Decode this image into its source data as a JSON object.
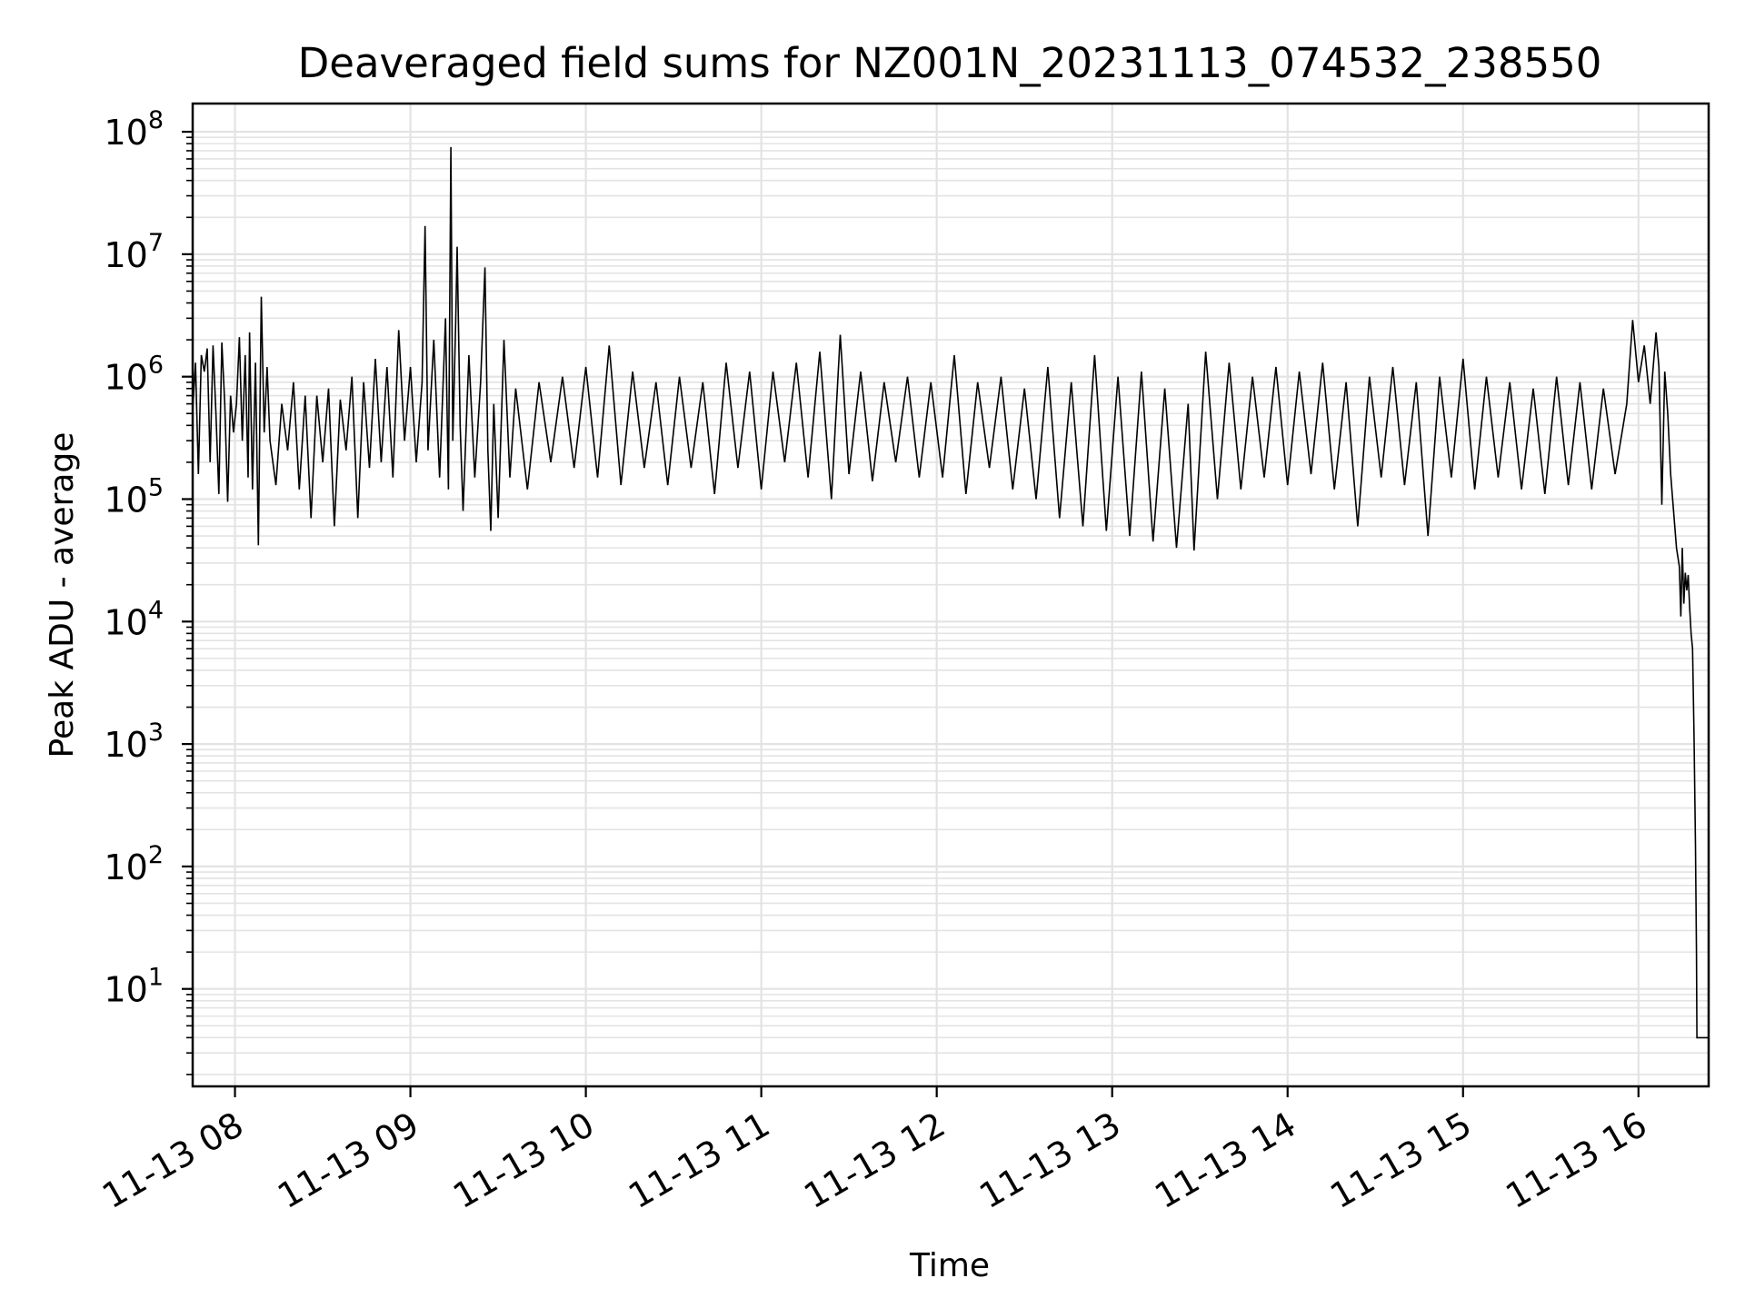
{
  "chart_data": {
    "type": "line",
    "title": "Deaveraged field sums for NZ001N_20231113_074532_238550",
    "xlabel": "Time",
    "ylabel": "Peak ADU - average",
    "yscale": "log",
    "ylim": [
      1.6,
      170000000
    ],
    "xlim": [
      "2023-11-13 07:45:32",
      "2023-11-13 16:24:00"
    ],
    "grid": true,
    "x_tick_labels": [
      "11-13 08",
      "11-13 09",
      "11-13 10",
      "11-13 11",
      "11-13 12",
      "11-13 13",
      "11-13 14",
      "11-13 15",
      "11-13 16"
    ],
    "x_ticks": [
      "2023-11-13 08:00",
      "2023-11-13 09:00",
      "2023-11-13 10:00",
      "2023-11-13 11:00",
      "2023-11-13 12:00",
      "2023-11-13 13:00",
      "2023-11-13 14:00",
      "2023-11-13 15:00",
      "2023-11-13 16:00"
    ],
    "y_ticks": [
      {
        "base": "10",
        "exp": "1",
        "value": 10
      },
      {
        "base": "10",
        "exp": "2",
        "value": 100
      },
      {
        "base": "10",
        "exp": "3",
        "value": 1000
      },
      {
        "base": "10",
        "exp": "4",
        "value": 10000
      },
      {
        "base": "10",
        "exp": "5",
        "value": 100000
      },
      {
        "base": "10",
        "exp": "6",
        "value": 1000000
      },
      {
        "base": "10",
        "exp": "7",
        "value": 10000000
      },
      {
        "base": "10",
        "exp": "8",
        "value": 100000000
      }
    ],
    "series": [
      {
        "color": "#000000",
        "points": [
          [
            "2023-11-13 07:45:40",
            600000
          ],
          [
            "2023-11-13 07:46:30",
            1300000
          ],
          [
            "2023-11-13 07:47:30",
            160000
          ],
          [
            "2023-11-13 07:48:30",
            1500000
          ],
          [
            "2023-11-13 07:49:30",
            1100000
          ],
          [
            "2023-11-13 07:50:30",
            1700000
          ],
          [
            "2023-11-13 07:51:30",
            200000
          ],
          [
            "2023-11-13 07:52:30",
            1800000
          ],
          [
            "2023-11-13 07:53:30",
            500000
          ],
          [
            "2023-11-13 07:54:30",
            110000
          ],
          [
            "2023-11-13 07:55:30",
            1900000
          ],
          [
            "2023-11-13 07:56:30",
            600000
          ],
          [
            "2023-11-13 07:57:30",
            95000
          ],
          [
            "2023-11-13 07:58:30",
            700000
          ],
          [
            "2023-11-13 07:59:30",
            350000
          ],
          [
            "2023-11-13 08:00:30",
            600000
          ],
          [
            "2023-11-13 08:01:30",
            2100000
          ],
          [
            "2023-11-13 08:02:30",
            300000
          ],
          [
            "2023-11-13 08:03:30",
            1500000
          ],
          [
            "2023-11-13 08:04:30",
            150000
          ],
          [
            "2023-11-13 08:05:00",
            2300000
          ],
          [
            "2023-11-13 08:06:00",
            120000
          ],
          [
            "2023-11-13 08:07:00",
            1300000
          ],
          [
            "2023-11-13 08:08:00",
            42000
          ],
          [
            "2023-11-13 08:09:00",
            4500000
          ],
          [
            "2023-11-13 08:10:00",
            350000
          ],
          [
            "2023-11-13 08:11:00",
            1200000
          ],
          [
            "2023-11-13 08:12:00",
            300000
          ],
          [
            "2023-11-13 08:14:00",
            130000
          ],
          [
            "2023-11-13 08:16:00",
            600000
          ],
          [
            "2023-11-13 08:18:00",
            250000
          ],
          [
            "2023-11-13 08:20:00",
            900000
          ],
          [
            "2023-11-13 08:22:00",
            120000
          ],
          [
            "2023-11-13 08:24:00",
            700000
          ],
          [
            "2023-11-13 08:26:00",
            70000
          ],
          [
            "2023-11-13 08:28:00",
            700000
          ],
          [
            "2023-11-13 08:30:00",
            200000
          ],
          [
            "2023-11-13 08:32:00",
            800000
          ],
          [
            "2023-11-13 08:34:00",
            60000
          ],
          [
            "2023-11-13 08:36:00",
            650000
          ],
          [
            "2023-11-13 08:38:00",
            250000
          ],
          [
            "2023-11-13 08:40:00",
            1000000
          ],
          [
            "2023-11-13 08:42:00",
            70000
          ],
          [
            "2023-11-13 08:44:00",
            900000
          ],
          [
            "2023-11-13 08:46:00",
            180000
          ],
          [
            "2023-11-13 08:48:00",
            1400000
          ],
          [
            "2023-11-13 08:50:00",
            200000
          ],
          [
            "2023-11-13 08:52:00",
            1200000
          ],
          [
            "2023-11-13 08:54:00",
            150000
          ],
          [
            "2023-11-13 08:56:00",
            2400000
          ],
          [
            "2023-11-13 08:58:00",
            300000
          ],
          [
            "2023-11-13 09:00:00",
            1200000
          ],
          [
            "2023-11-13 09:02:00",
            200000
          ],
          [
            "2023-11-13 09:04:00",
            900000
          ],
          [
            "2023-11-13 09:05:00",
            17000000
          ],
          [
            "2023-11-13 09:06:00",
            250000
          ],
          [
            "2023-11-13 09:08:00",
            2000000
          ],
          [
            "2023-11-13 09:10:00",
            150000
          ],
          [
            "2023-11-13 09:12:00",
            3000000
          ],
          [
            "2023-11-13 09:13:00",
            120000
          ],
          [
            "2023-11-13 09:13:50",
            75000000
          ],
          [
            "2023-11-13 09:14:30",
            300000
          ],
          [
            "2023-11-13 09:15:30",
            2800000
          ],
          [
            "2023-11-13 09:16:00",
            11500000
          ],
          [
            "2023-11-13 09:17:00",
            400000
          ],
          [
            "2023-11-13 09:18:00",
            80000
          ],
          [
            "2023-11-13 09:20:00",
            1500000
          ],
          [
            "2023-11-13 09:22:00",
            150000
          ],
          [
            "2023-11-13 09:24:00",
            900000
          ],
          [
            "2023-11-13 09:25:30",
            7800000
          ],
          [
            "2023-11-13 09:26:30",
            250000
          ],
          [
            "2023-11-13 09:27:30",
            55000
          ],
          [
            "2023-11-13 09:28:30",
            600000
          ],
          [
            "2023-11-13 09:30:00",
            70000
          ],
          [
            "2023-11-13 09:32:00",
            2000000
          ],
          [
            "2023-11-13 09:34:00",
            150000
          ],
          [
            "2023-11-13 09:36:00",
            800000
          ],
          [
            "2023-11-13 09:40:00",
            120000
          ],
          [
            "2023-11-13 09:44:00",
            900000
          ],
          [
            "2023-11-13 09:48:00",
            200000
          ],
          [
            "2023-11-13 09:52:00",
            1000000
          ],
          [
            "2023-11-13 09:56:00",
            180000
          ],
          [
            "2023-11-13 10:00:00",
            1200000
          ],
          [
            "2023-11-13 10:04:00",
            150000
          ],
          [
            "2023-11-13 10:08:00",
            1800000
          ],
          [
            "2023-11-13 10:12:00",
            130000
          ],
          [
            "2023-11-13 10:16:00",
            1100000
          ],
          [
            "2023-11-13 10:20:00",
            180000
          ],
          [
            "2023-11-13 10:24:00",
            900000
          ],
          [
            "2023-11-13 10:28:00",
            130000
          ],
          [
            "2023-11-13 10:32:00",
            1000000
          ],
          [
            "2023-11-13 10:36:00",
            180000
          ],
          [
            "2023-11-13 10:40:00",
            900000
          ],
          [
            "2023-11-13 10:44:00",
            110000
          ],
          [
            "2023-11-13 10:48:00",
            1300000
          ],
          [
            "2023-11-13 10:52:00",
            180000
          ],
          [
            "2023-11-13 10:56:00",
            1100000
          ],
          [
            "2023-11-13 11:00:00",
            120000
          ],
          [
            "2023-11-13 11:04:00",
            1100000
          ],
          [
            "2023-11-13 11:08:00",
            200000
          ],
          [
            "2023-11-13 11:12:00",
            1300000
          ],
          [
            "2023-11-13 11:16:00",
            150000
          ],
          [
            "2023-11-13 11:20:00",
            1600000
          ],
          [
            "2023-11-13 11:24:00",
            100000
          ],
          [
            "2023-11-13 11:27:00",
            2200000
          ],
          [
            "2023-11-13 11:30:00",
            160000
          ],
          [
            "2023-11-13 11:34:00",
            1100000
          ],
          [
            "2023-11-13 11:38:00",
            140000
          ],
          [
            "2023-11-13 11:42:00",
            900000
          ],
          [
            "2023-11-13 11:46:00",
            200000
          ],
          [
            "2023-11-13 11:50:00",
            1000000
          ],
          [
            "2023-11-13 11:54:00",
            150000
          ],
          [
            "2023-11-13 11:58:00",
            900000
          ],
          [
            "2023-11-13 12:02:00",
            150000
          ],
          [
            "2023-11-13 12:06:00",
            1500000
          ],
          [
            "2023-11-13 12:10:00",
            110000
          ],
          [
            "2023-11-13 12:14:00",
            900000
          ],
          [
            "2023-11-13 12:18:00",
            180000
          ],
          [
            "2023-11-13 12:22:00",
            1000000
          ],
          [
            "2023-11-13 12:26:00",
            120000
          ],
          [
            "2023-11-13 12:30:00",
            800000
          ],
          [
            "2023-11-13 12:34:00",
            100000
          ],
          [
            "2023-11-13 12:38:00",
            1200000
          ],
          [
            "2023-11-13 12:42:00",
            70000
          ],
          [
            "2023-11-13 12:46:00",
            900000
          ],
          [
            "2023-11-13 12:50:00",
            60000
          ],
          [
            "2023-11-13 12:54:00",
            1500000
          ],
          [
            "2023-11-13 12:58:00",
            55000
          ],
          [
            "2023-11-13 13:02:00",
            1000000
          ],
          [
            "2023-11-13 13:06:00",
            50000
          ],
          [
            "2023-11-13 13:10:00",
            1100000
          ],
          [
            "2023-11-13 13:14:00",
            45000
          ],
          [
            "2023-11-13 13:18:00",
            800000
          ],
          [
            "2023-11-13 13:22:00",
            40000
          ],
          [
            "2023-11-13 13:26:00",
            600000
          ],
          [
            "2023-11-13 13:28:00",
            38000
          ],
          [
            "2023-11-13 13:32:00",
            1600000
          ],
          [
            "2023-11-13 13:36:00",
            100000
          ],
          [
            "2023-11-13 13:40:00",
            1300000
          ],
          [
            "2023-11-13 13:44:00",
            120000
          ],
          [
            "2023-11-13 13:48:00",
            1000000
          ],
          [
            "2023-11-13 13:52:00",
            150000
          ],
          [
            "2023-11-13 13:56:00",
            1200000
          ],
          [
            "2023-11-13 14:00:00",
            130000
          ],
          [
            "2023-11-13 14:04:00",
            1100000
          ],
          [
            "2023-11-13 14:08:00",
            160000
          ],
          [
            "2023-11-13 14:12:00",
            1300000
          ],
          [
            "2023-11-13 14:16:00",
            120000
          ],
          [
            "2023-11-13 14:20:00",
            900000
          ],
          [
            "2023-11-13 14:24:00",
            60000
          ],
          [
            "2023-11-13 14:28:00",
            1000000
          ],
          [
            "2023-11-13 14:32:00",
            150000
          ],
          [
            "2023-11-13 14:36:00",
            1200000
          ],
          [
            "2023-11-13 14:40:00",
            130000
          ],
          [
            "2023-11-13 14:44:00",
            900000
          ],
          [
            "2023-11-13 14:48:00",
            50000
          ],
          [
            "2023-11-13 14:52:00",
            1000000
          ],
          [
            "2023-11-13 14:56:00",
            150000
          ],
          [
            "2023-11-13 15:00:00",
            1400000
          ],
          [
            "2023-11-13 15:04:00",
            120000
          ],
          [
            "2023-11-13 15:08:00",
            1000000
          ],
          [
            "2023-11-13 15:12:00",
            150000
          ],
          [
            "2023-11-13 15:16:00",
            900000
          ],
          [
            "2023-11-13 15:20:00",
            120000
          ],
          [
            "2023-11-13 15:24:00",
            800000
          ],
          [
            "2023-11-13 15:28:00",
            110000
          ],
          [
            "2023-11-13 15:32:00",
            1000000
          ],
          [
            "2023-11-13 15:36:00",
            130000
          ],
          [
            "2023-11-13 15:40:00",
            900000
          ],
          [
            "2023-11-13 15:44:00",
            120000
          ],
          [
            "2023-11-13 15:48:00",
            800000
          ],
          [
            "2023-11-13 15:52:00",
            160000
          ],
          [
            "2023-11-13 15:56:00",
            600000
          ],
          [
            "2023-11-13 15:58:00",
            2900000
          ],
          [
            "2023-11-13 16:00:00",
            900000
          ],
          [
            "2023-11-13 16:02:00",
            1800000
          ],
          [
            "2023-11-13 16:04:00",
            600000
          ],
          [
            "2023-11-13 16:06:00",
            2300000
          ],
          [
            "2023-11-13 16:07:00",
            1200000
          ],
          [
            "2023-11-13 16:08:00",
            90000
          ],
          [
            "2023-11-13 16:09:00",
            1100000
          ],
          [
            "2023-11-13 16:10:00",
            500000
          ],
          [
            "2023-11-13 16:11:00",
            160000
          ],
          [
            "2023-11-13 16:12:00",
            80000
          ],
          [
            "2023-11-13 16:13:00",
            40000
          ],
          [
            "2023-11-13 16:14:00",
            28000
          ],
          [
            "2023-11-13 16:14:30",
            11000
          ],
          [
            "2023-11-13 16:15:00",
            40000
          ],
          [
            "2023-11-13 16:15:30",
            14000
          ],
          [
            "2023-11-13 16:16:00",
            25000
          ],
          [
            "2023-11-13 16:16:30",
            18000
          ],
          [
            "2023-11-13 16:17:00",
            24000
          ],
          [
            "2023-11-13 16:17:30",
            13000
          ],
          [
            "2023-11-13 16:18:00",
            8000
          ],
          [
            "2023-11-13 16:18:30",
            6000
          ],
          [
            "2023-11-13 16:19:00",
            1200
          ],
          [
            "2023-11-13 16:19:30",
            150
          ],
          [
            "2023-11-13 16:19:50",
            20
          ],
          [
            "2023-11-13 16:20:00",
            4
          ],
          [
            "2023-11-13 16:21:00",
            4
          ],
          [
            "2023-11-13 16:22:00",
            4
          ],
          [
            "2023-11-13 16:23:00",
            4
          ],
          [
            "2023-11-13 16:24:00",
            4
          ]
        ]
      }
    ]
  }
}
